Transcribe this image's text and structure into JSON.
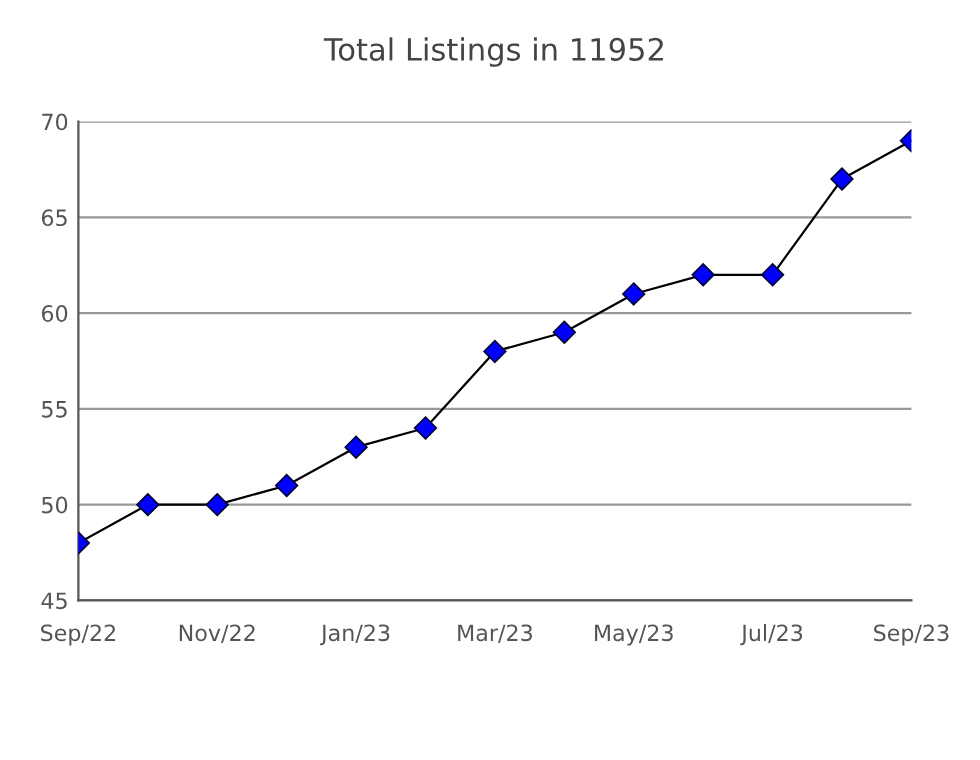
{
  "chart_data": {
    "type": "line",
    "title": "Total Listings in 11952",
    "categories": [
      "Sep/22",
      null,
      "Nov/22",
      null,
      "Jan/23",
      null,
      "Mar/23",
      null,
      "May/23",
      null,
      "Jul/23",
      null,
      "Sep/23"
    ],
    "series": [
      {
        "color": "#0000ff",
        "values": [
          48,
          50,
          50,
          51,
          53,
          54,
          58,
          59,
          61,
          62,
          62,
          67,
          69
        ]
      }
    ],
    "ylim": [
      45,
      70
    ],
    "yticks": [
      45,
      50,
      55,
      60,
      65,
      70
    ],
    "grid": "y",
    "marker": "diamond",
    "line_style": "solid"
  }
}
